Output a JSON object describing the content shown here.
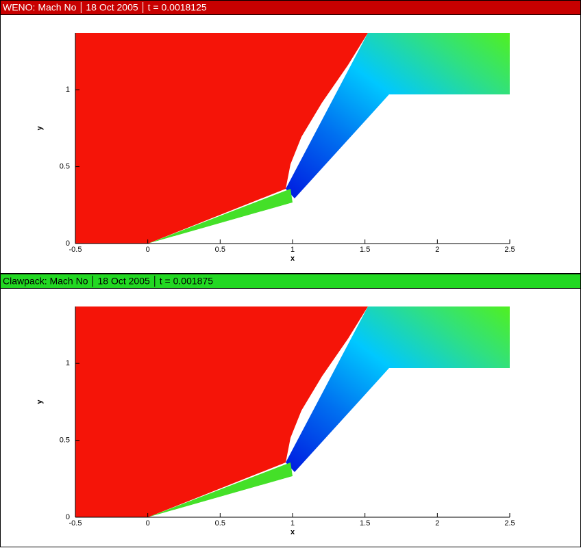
{
  "chart_data": [
    {
      "type": "contour",
      "header": [
        "WENO: Mach No",
        "18 Oct 2005",
        "t = 0.0018125"
      ],
      "header_color": "#c80000",
      "x_label": "x",
      "y_label": "y",
      "xlim": [
        -0.5,
        2.5
      ],
      "ylim": [
        0,
        1.37
      ],
      "xticks": [
        -0.5,
        0,
        0.5,
        1,
        1.5,
        2,
        2.5
      ],
      "yticks": [
        0,
        0.5,
        1
      ]
    },
    {
      "type": "contour",
      "header": [
        "Clawpack: Mach No",
        "18 Oct 2005",
        "t = 0.001875"
      ],
      "header_color": "#22d822",
      "x_label": "x",
      "y_label": "y",
      "xlim": [
        -0.5,
        2.5
      ],
      "ylim": [
        0,
        1.37
      ],
      "xticks": [
        -0.5,
        0,
        0.5,
        1,
        1.5,
        2,
        2.5
      ],
      "yticks": [
        0,
        0.5,
        1
      ]
    }
  ]
}
